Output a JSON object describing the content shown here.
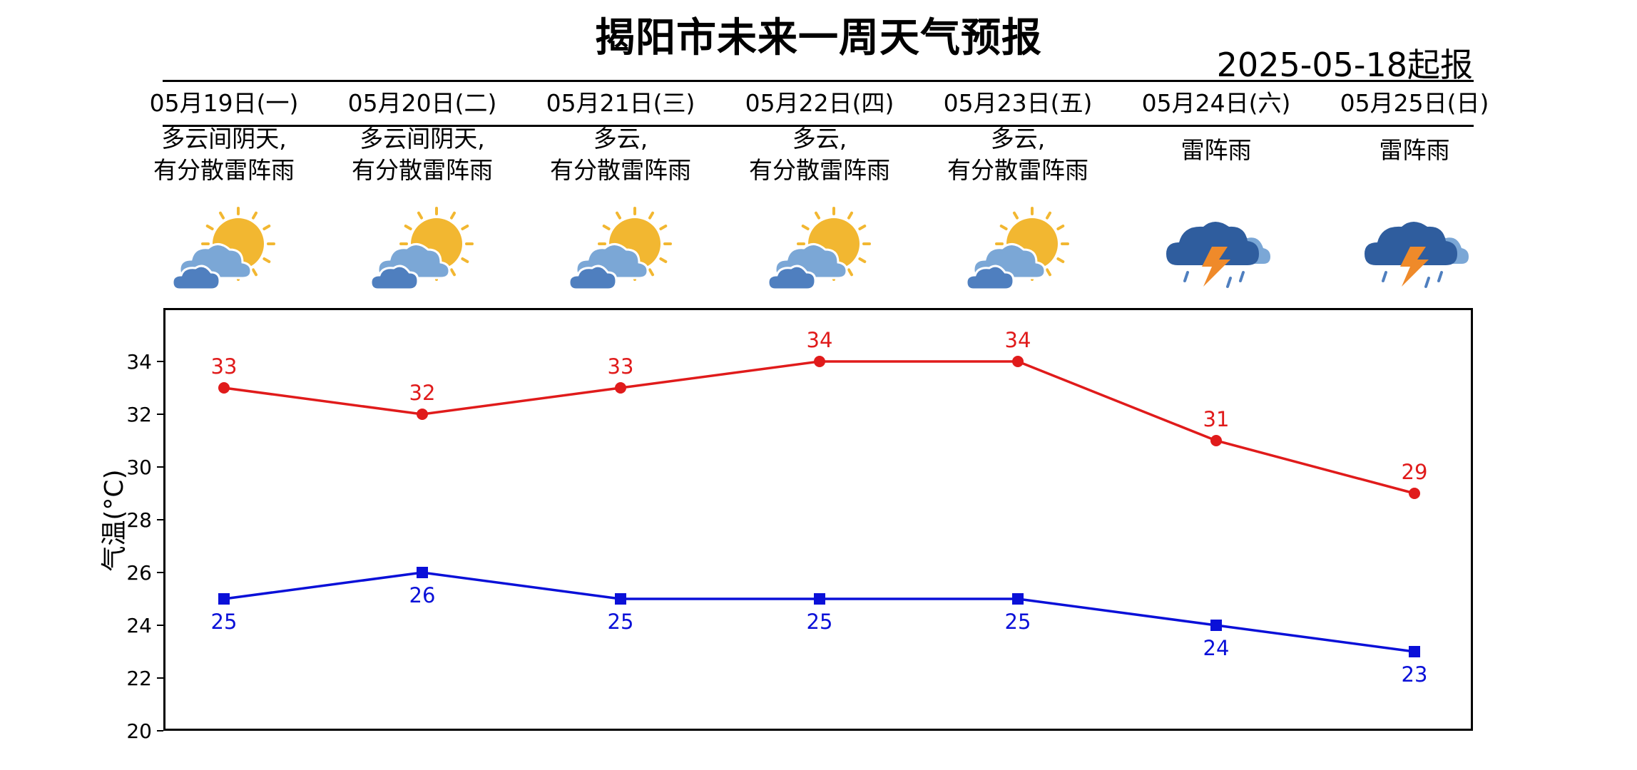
{
  "header": {
    "title": "揭阳市未来一周天气预报",
    "issue_date": "2025-05-18起报"
  },
  "days": [
    {
      "date": "05月19日(一)",
      "desc": [
        "多云间阴天,",
        "有分散雷阵雨"
      ],
      "icon": "partly-cloudy-sun-icon"
    },
    {
      "date": "05月20日(二)",
      "desc": [
        "多云间阴天,",
        "有分散雷阵雨"
      ],
      "icon": "partly-cloudy-sun-icon"
    },
    {
      "date": "05月21日(三)",
      "desc": [
        "多云,",
        "有分散雷阵雨"
      ],
      "icon": "partly-cloudy-sun-icon"
    },
    {
      "date": "05月22日(四)",
      "desc": [
        "多云,",
        "有分散雷阵雨"
      ],
      "icon": "partly-cloudy-sun-icon"
    },
    {
      "date": "05月23日(五)",
      "desc": [
        "多云,",
        "有分散雷阵雨"
      ],
      "icon": "partly-cloudy-sun-icon"
    },
    {
      "date": "05月24日(六)",
      "desc": [
        "雷阵雨"
      ],
      "icon": "thunderstorm-icon"
    },
    {
      "date": "05月25日(日)",
      "desc": [
        "雷阵雨"
      ],
      "icon": "thunderstorm-icon"
    }
  ],
  "colors": {
    "high": "#e01b1b",
    "low": "#0a10d8",
    "sun": "#f2b731",
    "cloud_light": "#7ba7d6",
    "cloud_dark": "#4f7fbf",
    "storm_cloud": "#2f5d9e",
    "bolt": "#ef8a2a"
  },
  "chart_data": {
    "type": "line",
    "categories": [
      "05月19日(一)",
      "05月20日(二)",
      "05月21日(三)",
      "05月22日(四)",
      "05月23日(五)",
      "05月24日(六)",
      "05月25日(日)"
    ],
    "series": [
      {
        "values": [
          33,
          32,
          33,
          34,
          34,
          31,
          29
        ],
        "color": "#e01b1b",
        "marker": "circle"
      },
      {
        "values": [
          25,
          26,
          25,
          25,
          25,
          24,
          23
        ],
        "color": "#0a10d8",
        "marker": "square"
      }
    ],
    "ylabel": "气温(°C)",
    "ylim": [
      20,
      36
    ],
    "yticks": [
      20,
      22,
      24,
      26,
      28,
      30,
      32,
      34
    ],
    "grid": false
  }
}
